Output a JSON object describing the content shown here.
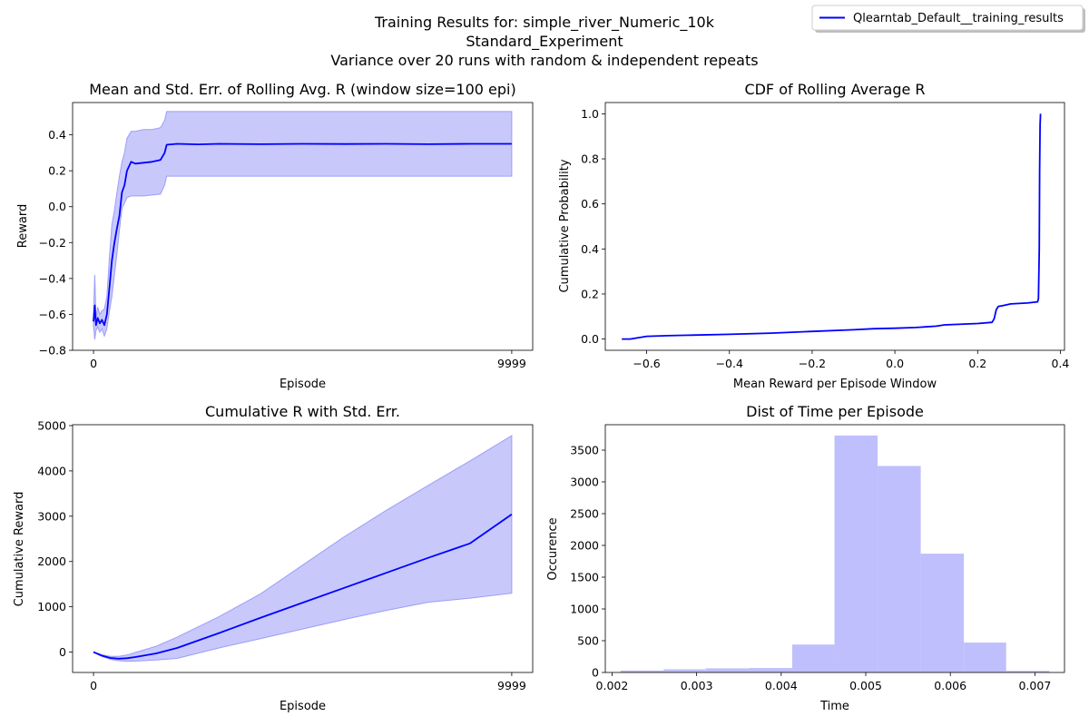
{
  "figure": {
    "suptitle_lines": [
      "Training Results for: simple_river_Numeric_10k",
      "Standard_Experiment",
      "Variance over 20 runs with random & independent repeats"
    ],
    "legend": {
      "label": "Qlearntab_Default__training_results",
      "placement": "top-right",
      "color": "#0000ff"
    },
    "colors": {
      "line": "#0000ff",
      "band": "#c8c8fb",
      "band_edge": "#9d9df8",
      "hist": "#bfbffd"
    }
  },
  "chart_data": [
    {
      "type": "line",
      "title": "Mean and Std. Err. of Rolling Avg. R (window size=100 epi)",
      "xlabel": "Episode",
      "ylabel": "Reward",
      "xlim": [
        -500,
        10500
      ],
      "ylim": [
        -0.8,
        0.58
      ],
      "xticks": [
        0,
        9999
      ],
      "yticks": [
        -0.8,
        -0.6,
        -0.4,
        -0.2,
        0.0,
        0.2,
        0.4
      ],
      "ytick_labels": [
        "−0.8",
        "−0.6",
        "−0.4",
        "−0.2",
        "0.0",
        "0.2",
        "0.4"
      ],
      "series": [
        {
          "x": [
            0,
            30,
            60,
            100,
            150,
            200,
            260,
            320,
            380,
            440,
            500,
            560,
            620,
            680,
            740,
            800,
            900,
            1000,
            1200,
            1400,
            1600,
            1700,
            1750,
            2000,
            2500,
            3000,
            4000,
            5000,
            6000,
            7000,
            8000,
            9000,
            9999
          ],
          "y": [
            -0.64,
            -0.55,
            -0.66,
            -0.62,
            -0.65,
            -0.63,
            -0.66,
            -0.6,
            -0.45,
            -0.3,
            -0.2,
            -0.12,
            -0.05,
            0.08,
            0.12,
            0.2,
            0.25,
            0.24,
            0.245,
            0.25,
            0.26,
            0.3,
            0.345,
            0.35,
            0.347,
            0.35,
            0.348,
            0.35,
            0.349,
            0.35,
            0.348,
            0.35,
            0.35
          ],
          "lower": [
            -0.66,
            -0.74,
            -0.69,
            -0.67,
            -0.7,
            -0.68,
            -0.72,
            -0.68,
            -0.58,
            -0.5,
            -0.38,
            -0.26,
            -0.13,
            -0.01,
            0.02,
            0.05,
            0.06,
            0.06,
            0.06,
            0.065,
            0.07,
            0.12,
            0.17,
            0.17,
            0.17,
            0.17,
            0.17,
            0.17,
            0.17,
            0.17,
            0.17,
            0.17,
            0.17
          ],
          "upper": [
            -0.62,
            -0.38,
            -0.62,
            -0.56,
            -0.6,
            -0.58,
            -0.57,
            -0.5,
            -0.28,
            -0.1,
            -0.02,
            0.08,
            0.17,
            0.25,
            0.3,
            0.38,
            0.42,
            0.42,
            0.43,
            0.43,
            0.44,
            0.48,
            0.53,
            0.53,
            0.53,
            0.53,
            0.53,
            0.53,
            0.53,
            0.53,
            0.53,
            0.53,
            0.53
          ]
        }
      ]
    },
    {
      "type": "line",
      "title": "CDF of Rolling Average R",
      "xlabel": "Mean Reward per Episode Window",
      "ylabel": "Cumulative Probability",
      "xlim": [
        -0.7,
        0.41
      ],
      "ylim": [
        -0.05,
        1.05
      ],
      "xticks": [
        -0.6,
        -0.4,
        -0.2,
        0.0,
        0.2,
        0.4
      ],
      "xtick_labels": [
        "−0.6",
        "−0.4",
        "−0.2",
        "0.0",
        "0.2",
        "0.4"
      ],
      "yticks": [
        0.0,
        0.2,
        0.4,
        0.6,
        0.8,
        1.0
      ],
      "ytick_labels": [
        "0.0",
        "0.2",
        "0.4",
        "0.6",
        "0.8",
        "1.0"
      ],
      "series": [
        {
          "x": [
            -0.66,
            -0.64,
            -0.62,
            -0.6,
            -0.55,
            -0.5,
            -0.4,
            -0.3,
            -0.2,
            -0.1,
            -0.05,
            0.0,
            0.05,
            0.1,
            0.12,
            0.2,
            0.235,
            0.24,
            0.245,
            0.25,
            0.26,
            0.28,
            0.32,
            0.345,
            0.347,
            0.349,
            0.35,
            0.351,
            0.352
          ],
          "y": [
            0.0,
            0.0,
            0.006,
            0.012,
            0.015,
            0.017,
            0.021,
            0.026,
            0.034,
            0.041,
            0.046,
            0.048,
            0.051,
            0.057,
            0.063,
            0.069,
            0.074,
            0.09,
            0.13,
            0.145,
            0.148,
            0.156,
            0.16,
            0.165,
            0.18,
            0.4,
            0.75,
            0.95,
            1.0
          ]
        }
      ]
    },
    {
      "type": "line",
      "title": "Cumulative R with Std. Err.",
      "xlabel": "Episode",
      "ylabel": "Cumulative Reward",
      "xlim": [
        -500,
        10500
      ],
      "ylim": [
        -450,
        5020
      ],
      "xticks": [
        0,
        9999
      ],
      "yticks": [
        0,
        1000,
        2000,
        3000,
        4000,
        5000
      ],
      "series": [
        {
          "x": [
            0,
            200,
            400,
            600,
            800,
            1000,
            1500,
            2000,
            3000,
            4000,
            5000,
            6000,
            7000,
            8000,
            9000,
            9999
          ],
          "y": [
            0,
            -80,
            -130,
            -145,
            -135,
            -110,
            -30,
            90,
            420,
            760,
            1090,
            1420,
            1750,
            2080,
            2400,
            3040
          ],
          "lower": [
            0,
            -95,
            -160,
            -190,
            -205,
            -200,
            -175,
            -140,
            90,
            300,
            510,
            720,
            920,
            1100,
            1190,
            1300
          ],
          "upper": [
            0,
            -60,
            -95,
            -95,
            -65,
            -10,
            130,
            330,
            780,
            1290,
            1920,
            2550,
            3130,
            3680,
            4220,
            4780
          ]
        }
      ]
    },
    {
      "type": "bar",
      "title": "Dist of Time per Episode",
      "xlabel": "Time",
      "ylabel": "Occurence",
      "xlim": [
        0.00192,
        0.00735
      ],
      "ylim": [
        0,
        3900
      ],
      "xticks": [
        0.002,
        0.003,
        0.004,
        0.005,
        0.006,
        0.007
      ],
      "xtick_labels": [
        "0.002",
        "0.003",
        "0.004",
        "0.005",
        "0.006",
        "0.007"
      ],
      "yticks": [
        0,
        500,
        1000,
        1500,
        2000,
        2500,
        3000,
        3500
      ],
      "bin_edges": [
        0.0021,
        0.00261,
        0.00311,
        0.00362,
        0.00413,
        0.00463,
        0.00514,
        0.00565,
        0.00616,
        0.00666,
        0.00717
      ],
      "counts": [
        30,
        50,
        65,
        70,
        440,
        3730,
        3250,
        1870,
        470,
        25
      ]
    }
  ]
}
